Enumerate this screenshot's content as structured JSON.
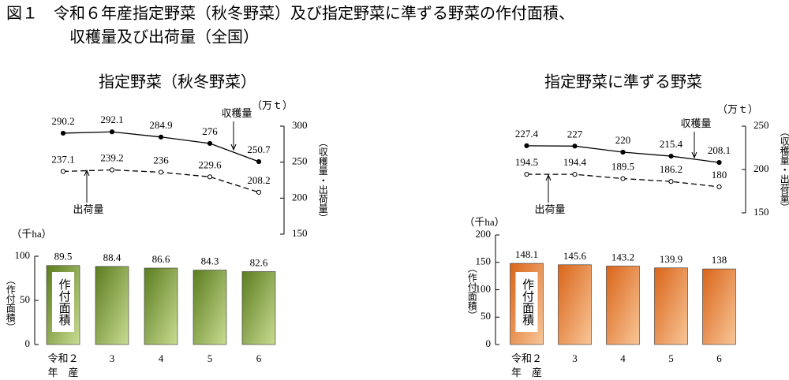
{
  "title_lines": [
    "図１　令和６年産指定野菜（秋冬野菜）及び指定野菜に準ずる野菜の作付面積、",
    "収穫量及び出荷量（全国）"
  ],
  "chart_data": [
    {
      "type": "line",
      "title": "指定野菜（秋冬野菜）",
      "ylabel": "（収穫量・出荷量）",
      "unit": "（万ｔ）",
      "categories": [
        "令和２",
        "3",
        "4",
        "5",
        "6"
      ],
      "ylim": [
        150,
        300
      ],
      "yticks": [
        150,
        200,
        250,
        300
      ],
      "series": [
        {
          "name": "収穫量",
          "color": "#000000",
          "style": "solid",
          "marker": "filled",
          "values": [
            290.2,
            292.1,
            284.9,
            276.0,
            250.7
          ]
        },
        {
          "name": "出荷量",
          "color": "#000000",
          "style": "dashed",
          "marker": "open",
          "values": [
            237.1,
            239.2,
            236.0,
            229.6,
            208.2
          ]
        }
      ]
    },
    {
      "type": "bar",
      "ylabel": "（作付面積）",
      "unit": "（千ha）",
      "label": "作付面積",
      "categories": [
        "令和２",
        "3",
        "4",
        "5",
        "6"
      ],
      "category_note": "年　産",
      "ylim": [
        0,
        100
      ],
      "yticks": [
        0,
        50,
        100
      ],
      "color": [
        "#5b7d1f",
        "#c9dc92"
      ],
      "values": [
        89.5,
        88.4,
        86.6,
        84.3,
        82.6
      ]
    },
    {
      "type": "line",
      "title": "指定野菜に準ずる野菜",
      "ylabel": "（収穫量・出荷量）",
      "unit": "（万ｔ）",
      "categories": [
        "令和２",
        "3",
        "4",
        "5",
        "6"
      ],
      "ylim": [
        150,
        250
      ],
      "yticks": [
        150,
        200,
        250
      ],
      "series": [
        {
          "name": "収穫量",
          "color": "#000000",
          "style": "solid",
          "marker": "filled",
          "values": [
            227.4,
            227.0,
            220.0,
            215.4,
            208.1
          ]
        },
        {
          "name": "出荷量",
          "color": "#000000",
          "style": "dashed",
          "marker": "open",
          "values": [
            194.5,
            194.4,
            189.5,
            186.2,
            180.0
          ]
        }
      ]
    },
    {
      "type": "bar",
      "ylabel": "（作付面積）",
      "unit": "（千ha）",
      "label": "作付面積",
      "categories": [
        "令和２",
        "3",
        "4",
        "5",
        "6"
      ],
      "category_note": "年　産",
      "ylim": [
        0,
        200
      ],
      "yticks": [
        0,
        50,
        100,
        150,
        200
      ],
      "color": [
        "#d9651a",
        "#f9c698"
      ],
      "values": [
        148.1,
        145.6,
        143.2,
        139.9,
        138.0
      ]
    }
  ]
}
